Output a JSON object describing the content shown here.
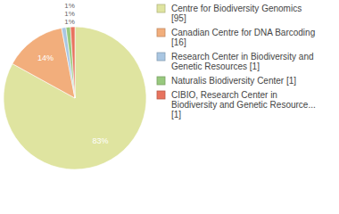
{
  "chart_data": {
    "type": "pie",
    "categories": [
      "Centre for Biodiversity Genomics [95]",
      "Canadian Centre for DNA Barcoding [16]",
      "Research Center in Biodiversity and Genetic Resources [1]",
      "Naturalis Biodiversity Center [1]",
      "CIBIO, Research Center in Biodiversity and Genetic Resource... [1]"
    ],
    "values": [
      83,
      14,
      1,
      1,
      1
    ],
    "value_labels": [
      "83%",
      "14%",
      "1%",
      "1%",
      "1%"
    ],
    "colors": [
      "#dfe4a0",
      "#f2ae7c",
      "#a9c6e2",
      "#98c97e",
      "#e8735e"
    ],
    "data_labels": true,
    "legend": "right"
  }
}
